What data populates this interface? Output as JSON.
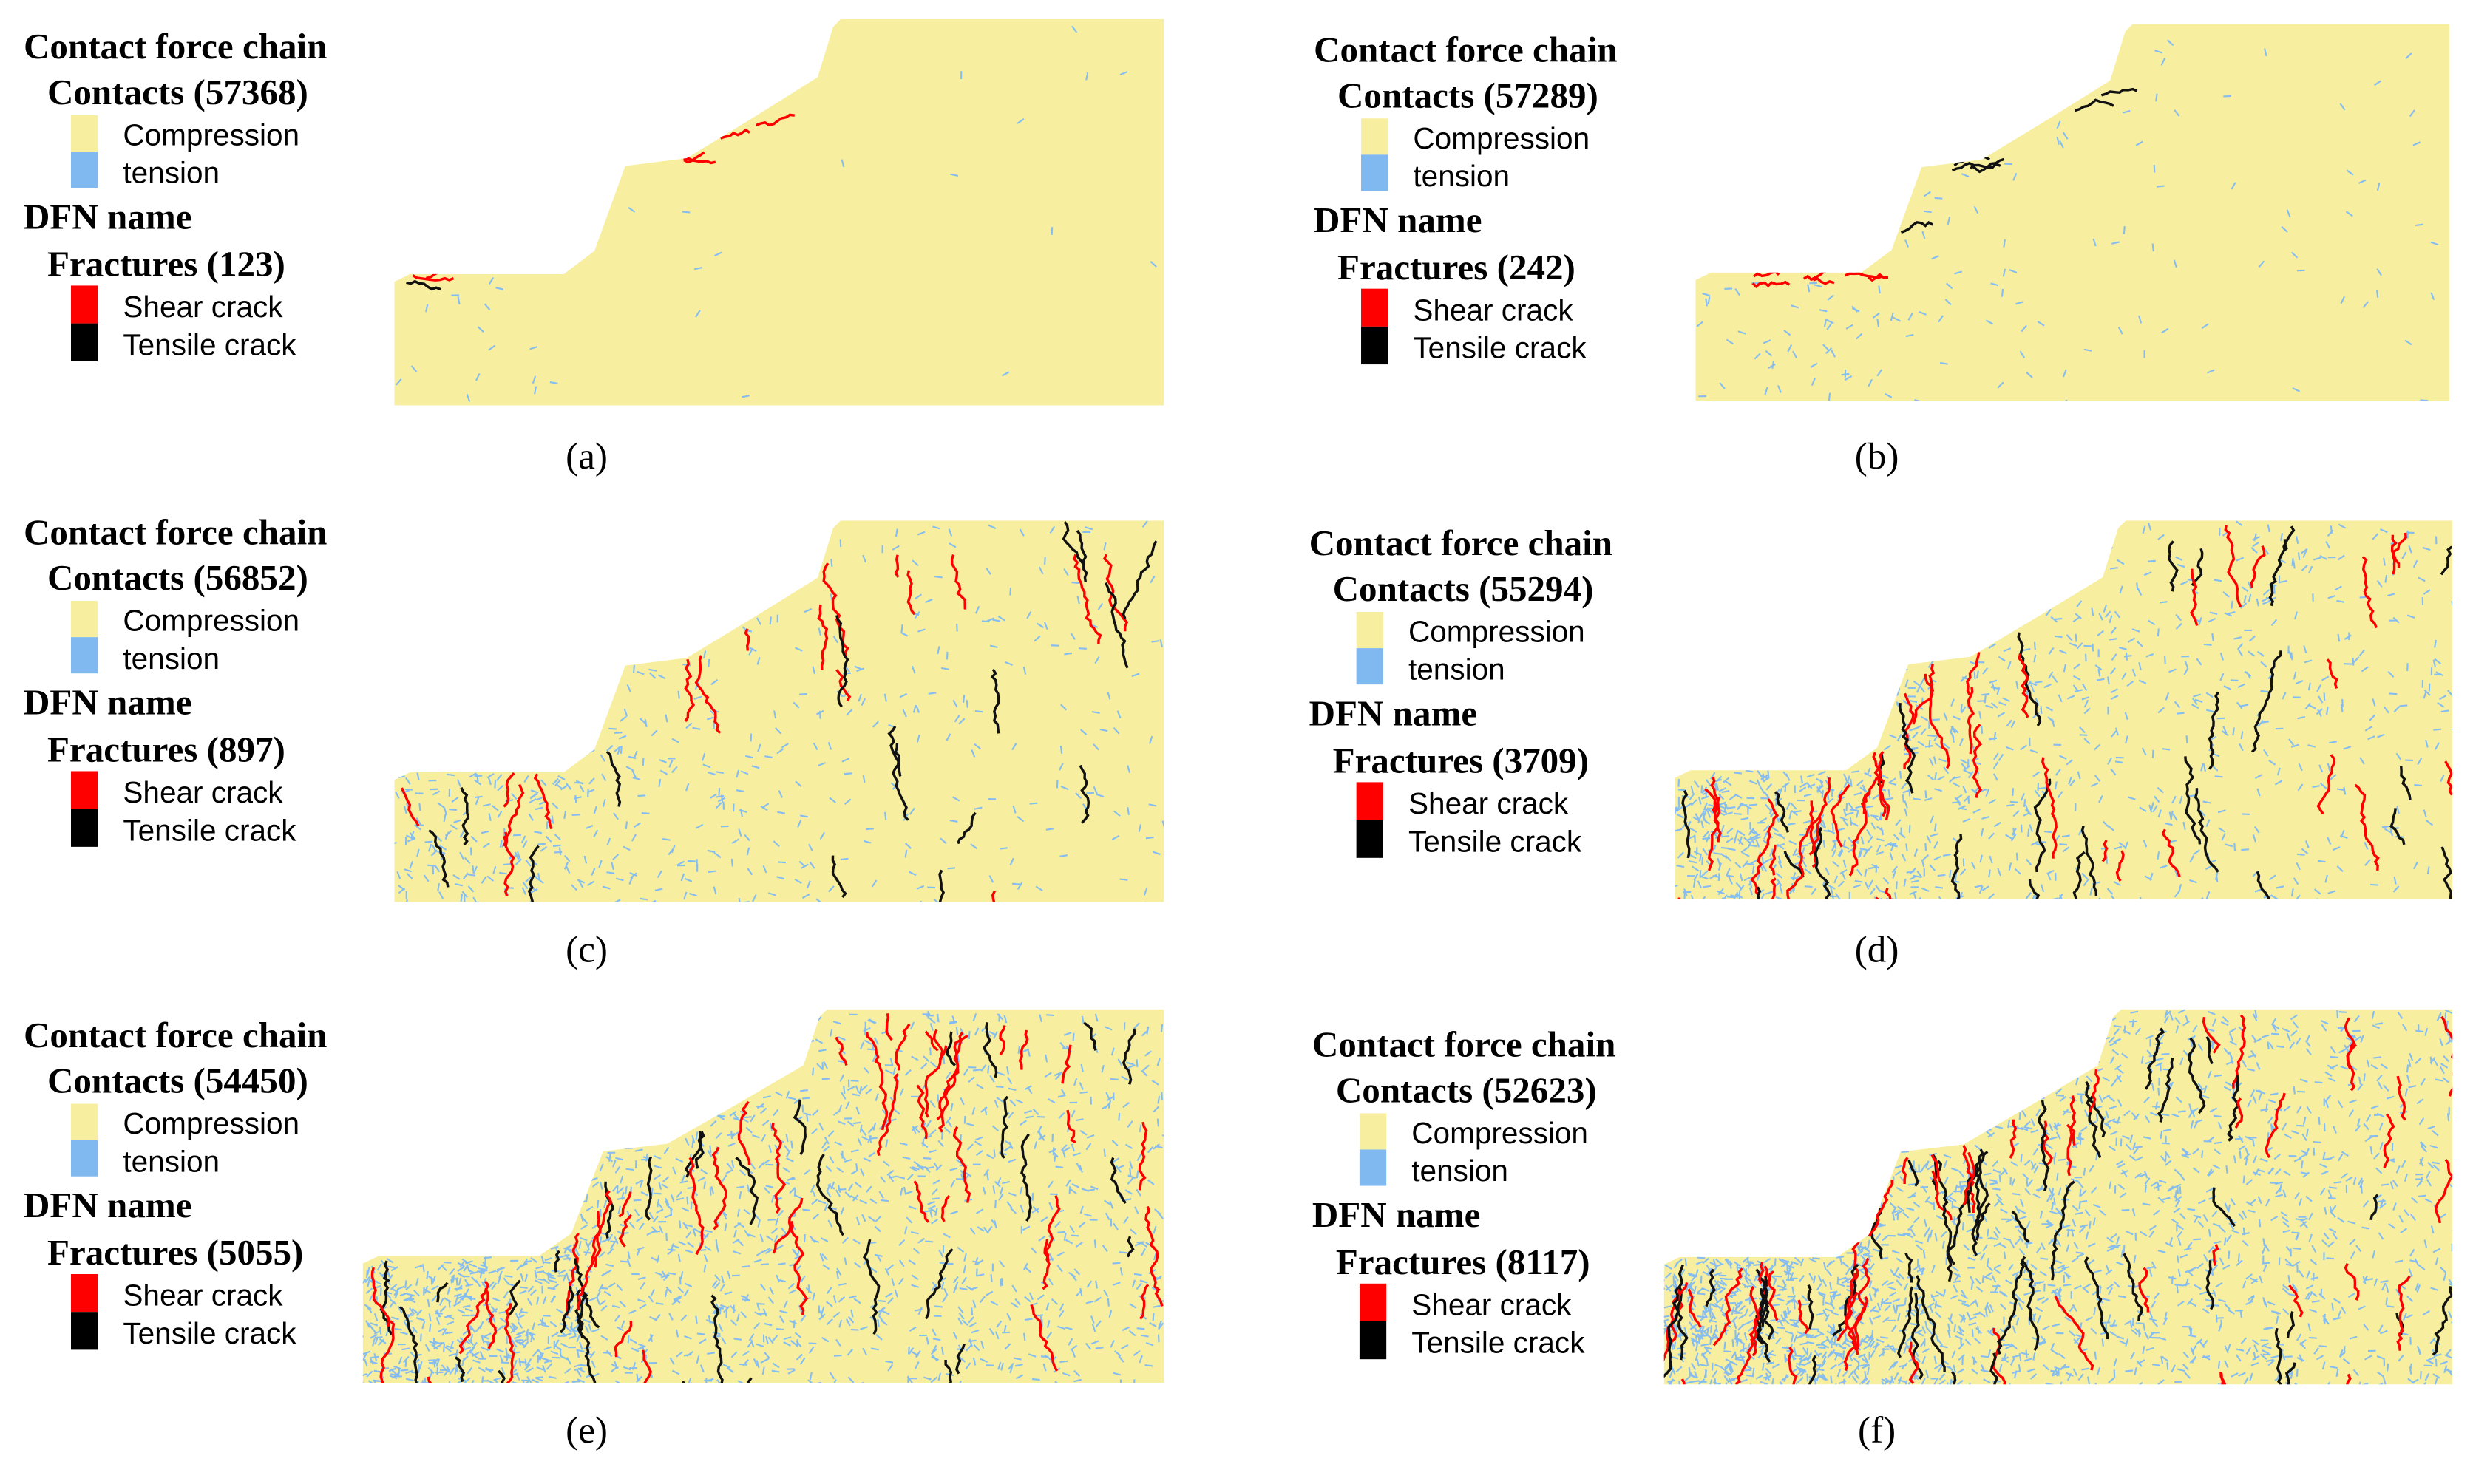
{
  "panels": [
    {
      "title": "Contact force chain",
      "contacts": "Contacts (57368)",
      "legend": [
        "Compression",
        "tension"
      ],
      "dfn": "DFN name",
      "fractures": "Fractures (123)",
      "cracks": [
        "Shear crack",
        "Tensile crack"
      ],
      "label": "(a)"
    },
    {
      "title": "Contact force chain",
      "contacts": "Contacts (57289)",
      "legend": [
        "Compression",
        "tension"
      ],
      "dfn": "DFN name",
      "fractures": "Fractures (242)",
      "cracks": [
        "Shear crack",
        "Tensile crack"
      ],
      "label": "(b)"
    },
    {
      "title": "Contact force chain",
      "contacts": "Contacts (56852)",
      "legend": [
        "Compression",
        "tension"
      ],
      "dfn": "DFN name",
      "fractures": "Fractures (897)",
      "cracks": [
        "Shear crack",
        "Tensile crack"
      ],
      "label": "(c)"
    },
    {
      "title": "Contact force chain",
      "contacts": "Contacts (55294)",
      "legend": [
        "Compression",
        "tension"
      ],
      "dfn": "DFN name",
      "fractures": "Fractures (3709)",
      "cracks": [
        "Shear crack",
        "Tensile crack"
      ],
      "label": "(d)"
    },
    {
      "title": "Contact force chain",
      "contacts": "Contacts (54450)",
      "legend": [
        "Compression",
        "tension"
      ],
      "dfn": "DFN name",
      "fractures": "Fractures (5055)",
      "cracks": [
        "Shear crack",
        "Tensile crack"
      ],
      "label": "(e)"
    },
    {
      "title": "Contact force chain",
      "contacts": "Contacts (52623)",
      "legend": [
        "Compression",
        "tension"
      ],
      "dfn": "DFN name",
      "fractures": "Fractures (8117)",
      "cracks": [
        "Shear crack",
        "Tensile crack"
      ],
      "label": "(f)"
    }
  ]
}
